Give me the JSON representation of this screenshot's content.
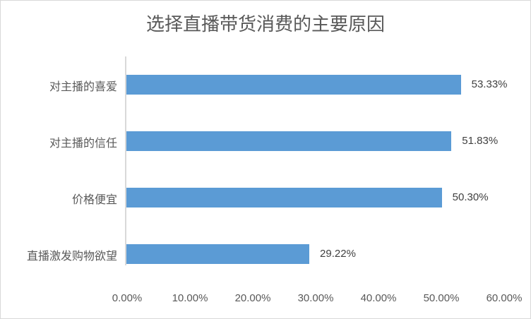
{
  "chart_data": {
    "type": "bar",
    "orientation": "horizontal",
    "title": "选择直播带货消费的主要原因",
    "categories": [
      "对主播的喜爱",
      "对主播的信任",
      "价格便宜",
      "直播激发购物欲望"
    ],
    "values": [
      53.33,
      51.83,
      50.3,
      29.22
    ],
    "value_labels": [
      "53.33%",
      "51.83%",
      "50.30%",
      "29.22%"
    ],
    "xlabel": "",
    "ylabel": "",
    "xlim": [
      0,
      60
    ],
    "x_ticks": [
      "0.00%",
      "10.00%",
      "20.00%",
      "30.00%",
      "40.00%",
      "50.00%",
      "60.00%"
    ],
    "grid": false,
    "legend": null,
    "bar_color": "#5b9bd5"
  }
}
